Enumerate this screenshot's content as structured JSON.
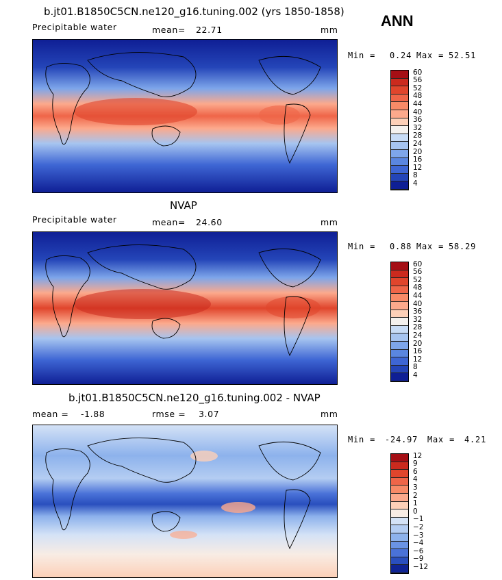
{
  "season": "ANN",
  "chart_data": [
    {
      "type": "heatmap",
      "title": "b.jt01.B1850C5CN.ne120_g16.tuning.002 (yrs 1850-1858)",
      "variable": "Precipitable water",
      "mean_label": "mean=",
      "mean": "22.71",
      "units": "mm",
      "min_label": "Min =",
      "min": "0.24",
      "max_label": "Max =",
      "max": "52.51",
      "colorbar_levels": [
        "60",
        "56",
        "52",
        "48",
        "44",
        "40",
        "36",
        "32",
        "28",
        "24",
        "20",
        "16",
        "12",
        "8",
        "4"
      ],
      "colorbar_colors": [
        "#a50f15",
        "#cb2a1e",
        "#e0452c",
        "#ef6548",
        "#f88a67",
        "#fca98c",
        "#fdd0b8",
        "#f4f1ee",
        "#c8dcf6",
        "#a6c4f0",
        "#7ea6ea",
        "#5a86e0",
        "#3e66d4",
        "#2445b8",
        "#0f1f95"
      ]
    },
    {
      "type": "heatmap",
      "title": "NVAP",
      "variable": "Precipitable water",
      "mean_label": "mean=",
      "mean": "24.60",
      "units": "mm",
      "min_label": "Min =",
      "min": "0.88",
      "max_label": "Max =",
      "max": "58.29",
      "colorbar_levels": [
        "60",
        "56",
        "52",
        "48",
        "44",
        "40",
        "36",
        "32",
        "28",
        "24",
        "20",
        "16",
        "12",
        "8",
        "4"
      ],
      "colorbar_colors": [
        "#a50f15",
        "#cb2a1e",
        "#e0452c",
        "#ef6548",
        "#f88a67",
        "#fca98c",
        "#fdd0b8",
        "#f4f1ee",
        "#c8dcf6",
        "#a6c4f0",
        "#7ea6ea",
        "#5a86e0",
        "#3e66d4",
        "#2445b8",
        "#0f1f95"
      ]
    },
    {
      "type": "heatmap",
      "title": "b.jt01.B1850C5CN.ne120_g16.tuning.002 - NVAP",
      "mean_label": "mean =",
      "mean": "-1.88",
      "rmse_label": "rmse =",
      "rmse": "3.07",
      "units": "mm",
      "min_label": "Min =",
      "min": "-24.97",
      "max_label": "Max =",
      "max": "4.21",
      "colorbar_levels": [
        "12",
        "9",
        "6",
        "4",
        "3",
        "2",
        "1",
        "0",
        "−1",
        "−2",
        "−3",
        "−4",
        "−6",
        "−9",
        "−12"
      ],
      "colorbar_colors": [
        "#a50f15",
        "#cb2a1e",
        "#e0452c",
        "#ef6548",
        "#f88a67",
        "#fca98c",
        "#fdd0b8",
        "#f8ece4",
        "#d4e2f6",
        "#b4cdf2",
        "#8db2ec",
        "#6a93e4",
        "#4a72d8",
        "#2a4fbe",
        "#102494"
      ]
    }
  ]
}
